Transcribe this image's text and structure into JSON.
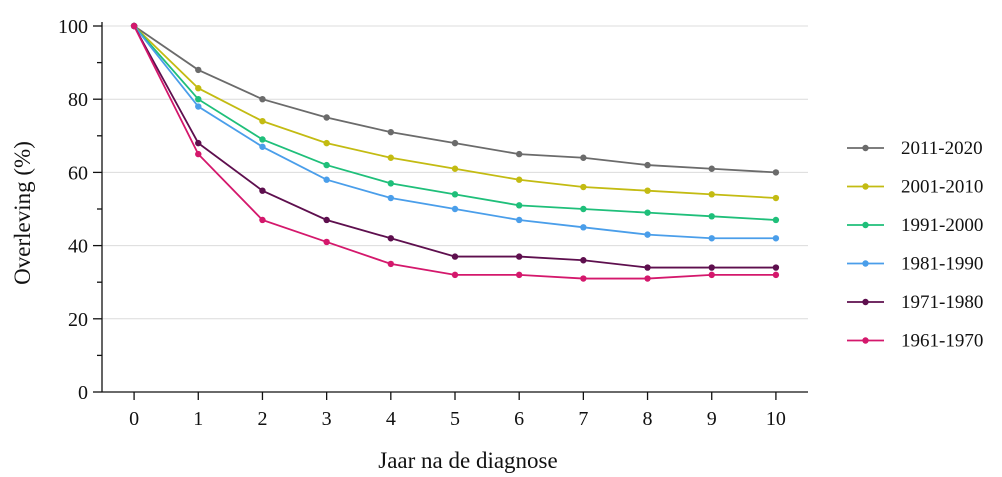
{
  "chart_data": {
    "type": "line",
    "xlabel": "Jaar na de diagnose",
    "ylabel": "Overleving (%)",
    "x": [
      0,
      1,
      2,
      3,
      4,
      5,
      6,
      7,
      8,
      9,
      10
    ],
    "xlim": [
      -0.5,
      10.5
    ],
    "ylim": [
      0,
      100
    ],
    "xticks": [
      "0",
      "1",
      "2",
      "3",
      "4",
      "5",
      "6",
      "7",
      "8",
      "9",
      "10"
    ],
    "yticks": [
      "0",
      "20",
      "40",
      "60",
      "80",
      "100"
    ],
    "grid": "horizontal",
    "legend_position": "right",
    "series": [
      {
        "name": "2011-2020",
        "color": "#6b6b6b",
        "values": [
          100,
          88,
          80,
          75,
          71,
          68,
          65,
          64,
          62,
          61,
          60
        ]
      },
      {
        "name": "2001-2010",
        "color": "#c3bb12",
        "values": [
          100,
          83,
          74,
          68,
          64,
          61,
          58,
          56,
          55,
          54,
          53
        ]
      },
      {
        "name": "1991-2000",
        "color": "#1fbf7a",
        "values": [
          100,
          80,
          69,
          62,
          57,
          54,
          51,
          50,
          49,
          48,
          47
        ]
      },
      {
        "name": "1981-1990",
        "color": "#4a9eea",
        "values": [
          100,
          78,
          67,
          58,
          53,
          50,
          47,
          45,
          43,
          42,
          42
        ]
      },
      {
        "name": "1971-1980",
        "color": "#5e0f4e",
        "values": [
          100,
          68,
          55,
          47,
          42,
          37,
          37,
          36,
          34,
          34,
          34
        ]
      },
      {
        "name": "1961-1970",
        "color": "#d4186c",
        "values": [
          100,
          65,
          47,
          41,
          35,
          32,
          32,
          31,
          31,
          32,
          32
        ]
      }
    ]
  }
}
